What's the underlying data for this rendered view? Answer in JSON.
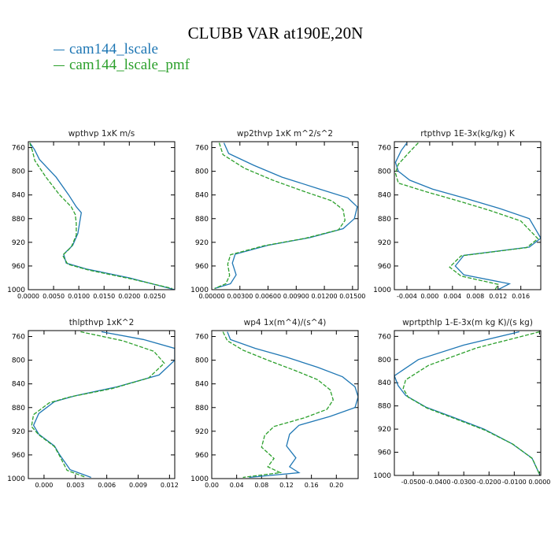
{
  "title": "CLUBB VAR at190E,20N",
  "legend": [
    {
      "label": "cam144_lscale",
      "color": "#1f77b4"
    },
    {
      "label": "cam144_lscale_pmf",
      "color": "#2ca02c"
    }
  ],
  "chart_data": [
    {
      "type": "line",
      "title": "wpthvp  1xK m/s",
      "xlim": [
        0,
        0.029
      ],
      "ylim": [
        1000,
        750
      ],
      "xticks": [
        "0.0000",
        "0.0050",
        "0.0100",
        "0.0150",
        "0.0200",
        "0.0250"
      ],
      "xtick_values": [
        0,
        0.005,
        0.01,
        0.015,
        0.02,
        0.025
      ],
      "yticks": [
        760,
        800,
        840,
        880,
        920,
        960,
        1000
      ],
      "series": [
        {
          "name": "cam144_lscale",
          "color": "#1f77b4",
          "x": [
            0.0003,
            0.0012,
            0.0022,
            0.0055,
            0.008,
            0.0095,
            0.0105,
            0.0102,
            0.0098,
            0.0088,
            0.007,
            0.0075,
            0.0115,
            0.02,
            0.029
          ],
          "y": [
            752,
            763,
            780,
            810,
            840,
            860,
            870,
            885,
            905,
            925,
            940,
            955,
            965,
            980,
            1000
          ]
        },
        {
          "name": "cam144_lscale_pmf",
          "color": "#2ca02c",
          "x": [
            0.0003,
            0.0008,
            0.0013,
            0.0035,
            0.0062,
            0.0085,
            0.0093,
            0.0095,
            0.0095,
            0.0085,
            0.0068,
            0.0078,
            0.012,
            0.0205,
            0.0285
          ],
          "y": [
            752,
            765,
            782,
            810,
            840,
            860,
            873,
            888,
            908,
            928,
            942,
            957,
            967,
            982,
            998
          ]
        }
      ]
    },
    {
      "type": "line",
      "title": "wp2thvp  1xK m^2/s^2",
      "xlim": [
        0,
        0.0156
      ],
      "ylim": [
        1000,
        750
      ],
      "xticks": [
        "0.00000",
        "0.00300",
        "0.00600",
        "0.00900",
        "0.01200",
        "0.01500"
      ],
      "xtick_values": [
        0,
        0.003,
        0.006,
        0.009,
        0.012,
        0.015
      ],
      "yticks": [
        760,
        800,
        840,
        880,
        920,
        960,
        1000
      ],
      "series": [
        {
          "name": "cam144_lscale",
          "color": "#1f77b4",
          "x": [
            0.0013,
            0.0018,
            0.0045,
            0.0075,
            0.0115,
            0.0145,
            0.0155,
            0.0152,
            0.014,
            0.0105,
            0.006,
            0.0025,
            0.0022,
            0.0026,
            0.002,
            0.0003
          ],
          "y": [
            752,
            770,
            790,
            810,
            830,
            845,
            860,
            880,
            897,
            912,
            925,
            940,
            955,
            975,
            990,
            998
          ]
        },
        {
          "name": "cam144_lscale_pmf",
          "color": "#2ca02c",
          "x": [
            0.0008,
            0.0012,
            0.0035,
            0.0065,
            0.01,
            0.0128,
            0.014,
            0.0142,
            0.0135,
            0.01,
            0.0055,
            0.002,
            0.0017,
            0.0019,
            0.0015,
            0.0003
          ],
          "y": [
            752,
            772,
            795,
            815,
            835,
            850,
            865,
            883,
            899,
            913,
            926,
            941,
            957,
            976,
            990,
            998
          ]
        }
      ]
    },
    {
      "type": "line",
      "title": "rtpthvp  1E-3x(kg/kg) K",
      "xlim": [
        -0.0062,
        0.0195
      ],
      "ylim": [
        1000,
        750
      ],
      "xticks": [
        "-0.004",
        "0.000",
        "0.004",
        "0.008",
        "0.012",
        "0.016"
      ],
      "xtick_values": [
        -0.004,
        0,
        0.004,
        0.008,
        0.012,
        0.016
      ],
      "yticks": [
        760,
        800,
        840,
        880,
        920,
        960,
        1000
      ],
      "series": [
        {
          "name": "cam144_lscale",
          "color": "#1f77b4",
          "x": [
            -0.004,
            -0.005,
            -0.006,
            -0.0055,
            -0.0035,
            0.0005,
            0.006,
            0.012,
            0.0175,
            0.0195,
            0.0175,
            0.006,
            0.0045,
            0.006,
            0.014,
            0.012
          ],
          "y": [
            752,
            765,
            785,
            800,
            815,
            830,
            845,
            862,
            880,
            913,
            928,
            942,
            960,
            975,
            990,
            1000
          ]
        },
        {
          "name": "cam144_lscale_pmf",
          "color": "#2ca02c",
          "x": [
            -0.002,
            -0.0035,
            -0.0055,
            -0.006,
            -0.0055,
            -0.0005,
            0.005,
            0.0105,
            0.016,
            0.019,
            0.017,
            0.0055,
            0.0035,
            0.0055,
            0.012,
            0.0115
          ],
          "y": [
            752,
            767,
            788,
            803,
            820,
            835,
            850,
            866,
            884,
            914,
            929,
            943,
            962,
            977,
            991,
            1000
          ]
        }
      ]
    },
    {
      "type": "line",
      "title": "thlpthvp  1xK^2",
      "xlim": [
        -0.0015,
        0.0125
      ],
      "ylim": [
        1000,
        750
      ],
      "xticks": [
        "0.000",
        "0.003",
        "0.006",
        "0.009",
        "0.012"
      ],
      "xtick_values": [
        0,
        0.003,
        0.006,
        0.009,
        0.012
      ],
      "yticks": [
        760,
        800,
        840,
        880,
        920,
        960,
        1000
      ],
      "series": [
        {
          "name": "cam144_lscale",
          "color": "#1f77b4",
          "x": [
            0.0055,
            0.0095,
            0.0125,
            0.0125,
            0.011,
            0.007,
            0.003,
            0.001,
            -0.0005,
            -0.001,
            -0.0005,
            0.001,
            0.0015,
            0.0025,
            0.0045
          ],
          "y": [
            752,
            765,
            780,
            800,
            825,
            845,
            860,
            870,
            890,
            910,
            925,
            945,
            960,
            985,
            998
          ]
        },
        {
          "name": "cam144_lscale_pmf",
          "color": "#2ca02c",
          "x": [
            0.0035,
            0.0075,
            0.0105,
            0.0115,
            0.01,
            0.0065,
            0.0025,
            0.0005,
            -0.001,
            -0.0012,
            -0.0005,
            0.001,
            0.0015,
            0.0022,
            0.004
          ],
          "y": [
            752,
            767,
            785,
            805,
            830,
            848,
            862,
            872,
            892,
            912,
            926,
            946,
            962,
            986,
            998
          ]
        }
      ]
    },
    {
      "type": "line",
      "title": "wp4  1x(m^4)/(s^4)",
      "xlim": [
        0,
        0.235
      ],
      "ylim": [
        1000,
        750
      ],
      "xticks": [
        "0.00",
        "0.04",
        "0.08",
        "0.12",
        "0.16",
        "0.20"
      ],
      "xtick_values": [
        0,
        0.04,
        0.08,
        0.12,
        0.16,
        0.2
      ],
      "yticks": [
        760,
        800,
        840,
        880,
        920,
        960,
        1000
      ],
      "series": [
        {
          "name": "cam144_lscale",
          "color": "#1f77b4",
          "x": [
            0.025,
            0.03,
            0.07,
            0.12,
            0.17,
            0.21,
            0.23,
            0.235,
            0.23,
            0.19,
            0.14,
            0.125,
            0.12,
            0.135,
            0.125,
            0.14,
            0.06
          ],
          "y": [
            752,
            765,
            780,
            795,
            812,
            828,
            845,
            862,
            880,
            895,
            910,
            925,
            945,
            965,
            980,
            990,
            998
          ]
        },
        {
          "name": "cam144_lscale_pmf",
          "color": "#2ca02c",
          "x": [
            0.018,
            0.025,
            0.05,
            0.09,
            0.135,
            0.17,
            0.19,
            0.195,
            0.185,
            0.15,
            0.1,
            0.085,
            0.08,
            0.1,
            0.09,
            0.11,
            0.05
          ],
          "y": [
            752,
            767,
            783,
            800,
            818,
            833,
            850,
            867,
            883,
            897,
            912,
            927,
            947,
            966,
            980,
            990,
            998
          ]
        }
      ]
    },
    {
      "type": "line",
      "title": "wprtpthlp  1-E-3x(m kg K)/(s kg)",
      "xlim": [
        -0.0575,
        0.0005
      ],
      "ylim": [
        1000,
        750
      ],
      "xticks": [
        "-0.0500",
        "-0.0400",
        "-0.0300",
        "-0.0200",
        "-0.0100",
        "0.0000"
      ],
      "xtick_values": [
        -0.05,
        -0.04,
        -0.03,
        -0.02,
        -0.01,
        0
      ],
      "yticks": [
        760,
        800,
        840,
        880,
        920,
        960,
        1000
      ],
      "series": [
        {
          "name": "cam144_lscale",
          "color": "#1f77b4",
          "x": [
            -0.008,
            -0.03,
            -0.048,
            -0.0575,
            -0.056,
            -0.053,
            -0.045,
            -0.034,
            -0.022,
            -0.011,
            -0.003,
            0.0
          ],
          "y": [
            752,
            775,
            800,
            828,
            845,
            862,
            882,
            900,
            920,
            945,
            970,
            998
          ]
        },
        {
          "name": "cam144_lscale_pmf",
          "color": "#2ca02c",
          "x": [
            0.0,
            -0.025,
            -0.044,
            -0.053,
            -0.054,
            -0.052,
            -0.0445,
            -0.0335,
            -0.0215,
            -0.0105,
            -0.0028,
            0.0
          ],
          "y": [
            752,
            780,
            810,
            835,
            850,
            865,
            884,
            902,
            922,
            946,
            971,
            998
          ]
        }
      ]
    }
  ]
}
